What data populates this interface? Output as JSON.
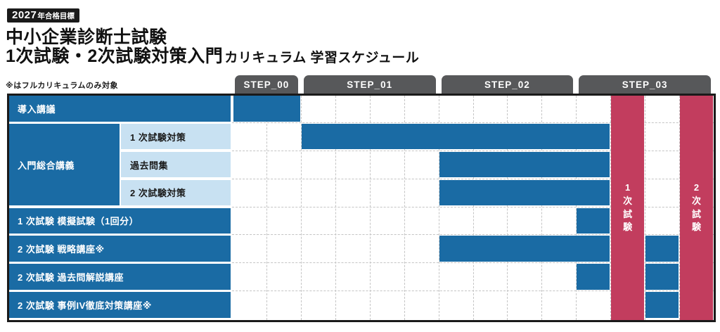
{
  "badge": {
    "year": "2027",
    "suffix": "年合格目標"
  },
  "title": {
    "line1": "中小企業診断士試験",
    "line2_main": "1次試験・2次試験対策入門",
    "line2_sub": "カリキュラム 学習スケジュール"
  },
  "note": "※はフルカリキュラムのみ対象",
  "colors": {
    "bar_blue": "#1A6BA4",
    "sublabel_blue": "#C8E1F2",
    "exam_red": "#C23D5E",
    "tab_gray": "#57585A",
    "grid_line": "#C4C4C4",
    "border_black": "#1A1A1A"
  },
  "chart_data": {
    "type": "gantt",
    "title": "1次試験・2次試験対策入門カリキュラム 学習スケジュール",
    "columns_total": 14,
    "steps": [
      {
        "label": "STEP_00",
        "cols": 2
      },
      {
        "label": "STEP_01",
        "cols": 4
      },
      {
        "label": "STEP_02",
        "cols": 4
      },
      {
        "label": "STEP_03",
        "cols": 4
      }
    ],
    "group_label": "入門総合講義",
    "rows": [
      {
        "label": "導入講議",
        "group": false,
        "bars": [
          [
            0,
            2
          ]
        ]
      },
      {
        "label": "1 次試験対策",
        "group": true,
        "bars": [
          [
            2,
            11
          ]
        ]
      },
      {
        "label": "過去問集",
        "group": true,
        "bars": [
          [
            6,
            11
          ]
        ]
      },
      {
        "label": "2 次試験対策",
        "group": true,
        "bars": [
          [
            6,
            11
          ]
        ]
      },
      {
        "label": "1 次試験 模擬試験（1回分）",
        "group": false,
        "bars": [
          [
            10,
            11
          ]
        ]
      },
      {
        "label": "2 次試験 戦略講座※",
        "group": false,
        "bars": [
          [
            6,
            11
          ],
          [
            12,
            13
          ]
        ]
      },
      {
        "label": "2 次試験 過去問解説講座",
        "group": false,
        "bars": [
          [
            10,
            11
          ],
          [
            12,
            13
          ]
        ]
      },
      {
        "label": "2 次試験 事例IV徹底対策講座※",
        "group": false,
        "bars": [
          [
            12,
            13
          ]
        ]
      }
    ],
    "exam_columns": [
      {
        "label": "1次試験",
        "col": 11
      },
      {
        "label": "2次試験",
        "col": 13
      }
    ],
    "legend_position": "none",
    "grid": "dashed"
  }
}
